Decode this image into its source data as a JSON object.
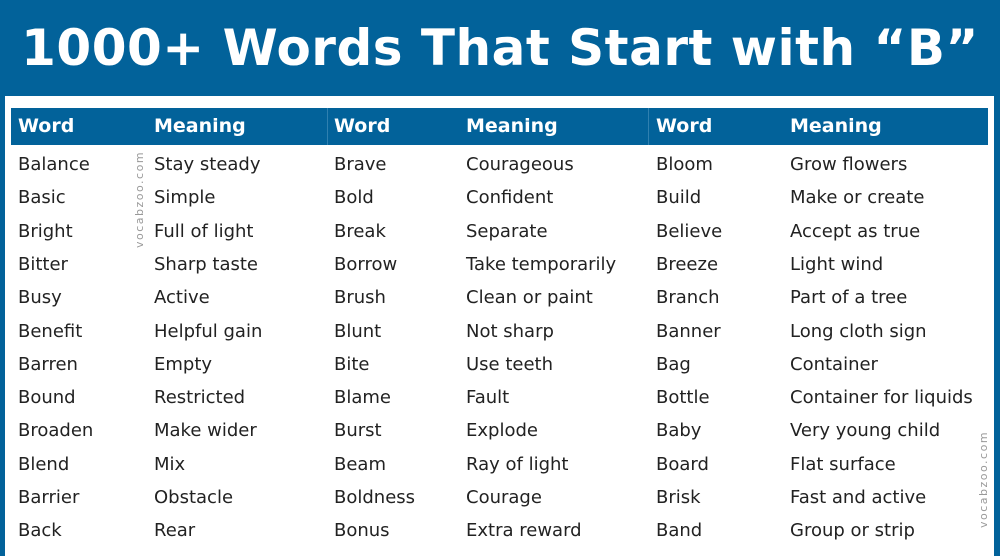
{
  "title": "1000+ Words That Start with “B”",
  "headers": [
    "Word",
    "Meaning",
    "Word",
    "Meaning",
    "Word",
    "Meaning"
  ],
  "watermark": "vocabzoo.com",
  "colors": {
    "brand": "#02629a"
  },
  "rows": [
    [
      "Balance",
      "Stay steady",
      "Brave",
      "Courageous",
      "Bloom",
      "Grow flowers"
    ],
    [
      "Basic",
      "Simple",
      "Bold",
      "Confident",
      "Build",
      "Make or create"
    ],
    [
      "Bright",
      "Full of light",
      "Break",
      "Separate",
      "Believe",
      "Accept as true"
    ],
    [
      "Bitter",
      "Sharp taste",
      "Borrow",
      "Take temporarily",
      "Breeze",
      "Light wind"
    ],
    [
      "Busy",
      "Active",
      "Brush",
      "Clean or paint",
      "Branch",
      "Part of a tree"
    ],
    [
      "Benefit",
      "Helpful gain",
      "Blunt",
      "Not sharp",
      "Banner",
      "Long cloth sign"
    ],
    [
      "Barren",
      "Empty",
      "Bite",
      "Use teeth",
      "Bag",
      "Container"
    ],
    [
      "Bound",
      "Restricted",
      "Blame",
      "Fault",
      "Bottle",
      "Container for liquids"
    ],
    [
      "Broaden",
      "Make wider",
      "Burst",
      "Explode",
      "Baby",
      "Very young child"
    ],
    [
      "Blend",
      "Mix",
      "Beam",
      "Ray of light",
      "Board",
      "Flat surface"
    ],
    [
      "Barrier",
      "Obstacle",
      "Boldness",
      "Courage",
      "Brisk",
      "Fast and active"
    ],
    [
      "Back",
      "Rear",
      "Bonus",
      "Extra reward",
      "Band",
      "Group or strip"
    ]
  ]
}
